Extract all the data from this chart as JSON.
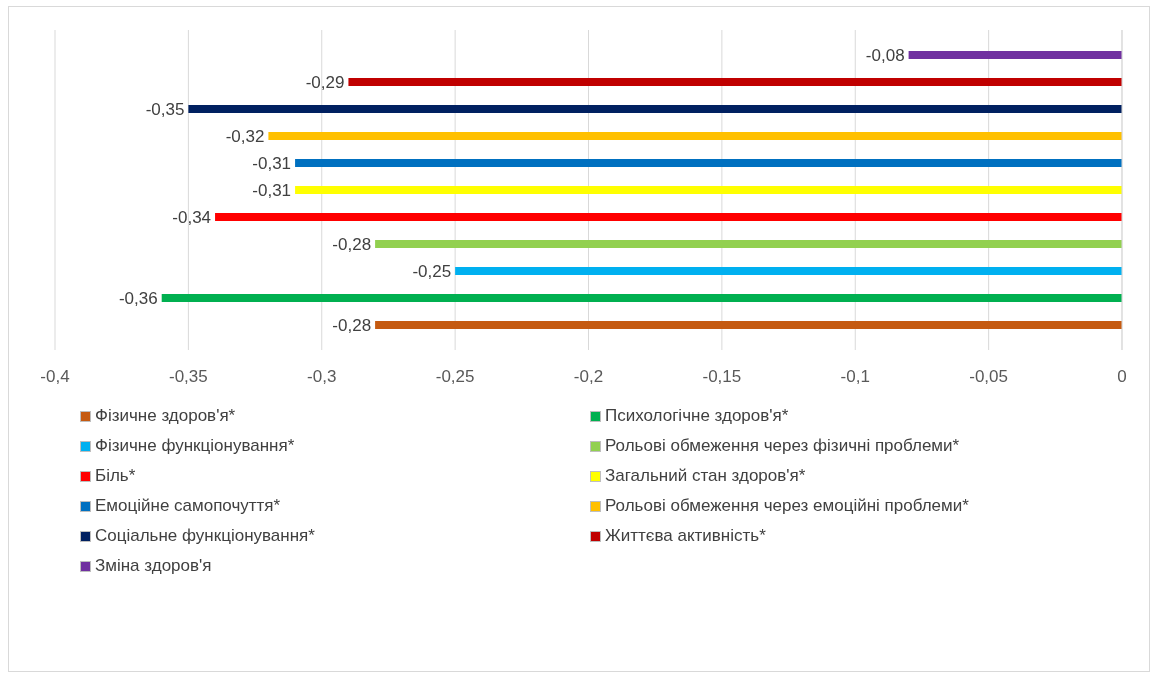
{
  "chart_data": {
    "type": "bar",
    "orientation": "horizontal",
    "categories": [
      null
    ],
    "series": [
      {
        "name": "Фізичне здоров'я*",
        "color": "#c55a11",
        "values": [
          -0.28
        ],
        "value_labels": [
          "-0,28"
        ]
      },
      {
        "name": "Психологічне здоров'я*",
        "color": "#00b050",
        "values": [
          -0.36
        ],
        "value_labels": [
          "-0,36"
        ]
      },
      {
        "name": "Фізичне функціонування*",
        "color": "#00b0f0",
        "values": [
          -0.25
        ],
        "value_labels": [
          "-0,25"
        ]
      },
      {
        "name": "Рольові обмеження через фізичні проблеми*",
        "color": "#92d050",
        "values": [
          -0.28
        ],
        "value_labels": [
          "-0,28"
        ]
      },
      {
        "name": "Біль*",
        "color": "#ff0000",
        "values": [
          -0.34
        ],
        "value_labels": [
          "-0,34"
        ]
      },
      {
        "name": "Загальний стан здоров'я*",
        "color": "#ffff00",
        "values": [
          -0.31
        ],
        "value_labels": [
          "-0,31"
        ]
      },
      {
        "name": "Емоційне самопочуття*",
        "color": "#0070c0",
        "values": [
          -0.31
        ],
        "value_labels": [
          "-0,31"
        ]
      },
      {
        "name": "Рольові обмеження через емоційні проблеми*",
        "color": "#ffc000",
        "values": [
          -0.32
        ],
        "value_labels": [
          "-0,32"
        ]
      },
      {
        "name": "Соціальне функціонування*",
        "color": "#002060",
        "values": [
          -0.35
        ],
        "value_labels": [
          "-0,35"
        ]
      },
      {
        "name": "Життєва активність*",
        "color": "#c00000",
        "values": [
          -0.29
        ],
        "value_labels": [
          "-0,29"
        ]
      },
      {
        "name": "Зміна здоров'я",
        "color": "#7030a0",
        "values": [
          -0.08
        ],
        "value_labels": [
          "-0,08"
        ]
      }
    ],
    "xlim": [
      -0.4,
      0
    ],
    "xticks": [
      {
        "value": -0.4,
        "label": "-0,4"
      },
      {
        "value": -0.35,
        "label": "-0,35"
      },
      {
        "value": -0.3,
        "label": "-0,3"
      },
      {
        "value": -0.25,
        "label": "-0,25"
      },
      {
        "value": -0.2,
        "label": "-0,2"
      },
      {
        "value": -0.15,
        "label": "-0,15"
      },
      {
        "value": -0.1,
        "label": "-0,1"
      },
      {
        "value": -0.05,
        "label": "-0,05"
      },
      {
        "value": 0,
        "label": "0"
      }
    ],
    "grid": "x",
    "legend": "bottom"
  }
}
